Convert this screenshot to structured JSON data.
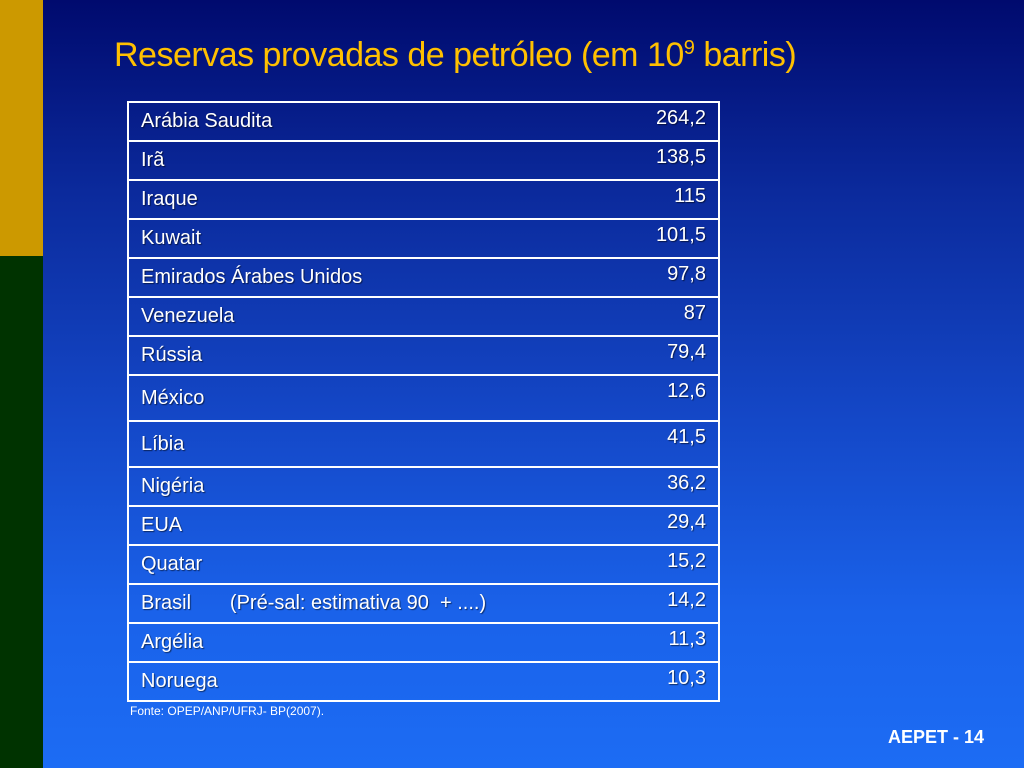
{
  "slide": {
    "title_prefix": "Reservas provadas de petróleo (em 10",
    "title_exponent": "9",
    "title_suffix": " barris)",
    "source": "Fonte: OPEP/ANP/UFRJ- BP(2007).",
    "footer": "AEPET - 14"
  },
  "table": {
    "rows": [
      {
        "country": "Arábia Saudita",
        "value": "264,2"
      },
      {
        "country": "Irã",
        "value": "138,5"
      },
      {
        "country": "Iraque",
        "value": "115"
      },
      {
        "country": "Kuwait",
        "value": "101,5"
      },
      {
        "country": "Emirados Árabes Unidos",
        "value": "97,8"
      },
      {
        "country": "Venezuela",
        "value": "87"
      },
      {
        "country": "Rússia",
        "value": "79,4"
      },
      {
        "country": "México",
        "value": "12,6"
      },
      {
        "country": "Líbia",
        "value": "41,5"
      },
      {
        "country": "Nigéria",
        "value": "36,2"
      },
      {
        "country": "EUA",
        "value": "29,4"
      },
      {
        "country": "Quatar",
        "value": "15,2"
      },
      {
        "country": "Brasil       (Pré-sal: estimativa 90  + ....)",
        "value": "14,2"
      },
      {
        "country": "Argélia",
        "value": "11,3"
      },
      {
        "country": "Noruega",
        "value": "10,3"
      }
    ]
  },
  "colors": {
    "accent_bar_top": "#cc9900",
    "accent_bar_bottom": "#003300",
    "title": "#ffc000",
    "text": "#ffffff"
  }
}
